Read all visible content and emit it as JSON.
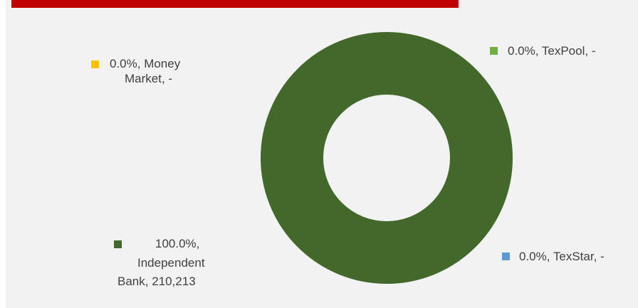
{
  "chart_data": {
    "type": "pie",
    "donut": true,
    "title": "",
    "slices": [
      {
        "label": "Money Market",
        "percent": "0.0%",
        "value": "-",
        "raw": 0,
        "color": "#ffc000"
      },
      {
        "label": "TexPool",
        "percent": "0.0%",
        "value": "-",
        "raw": 0,
        "color": "#70ad47"
      },
      {
        "label": "TexStar",
        "percent": "0.0%",
        "value": "-",
        "raw": 0,
        "color": "#5b9bd5"
      },
      {
        "label": "Independent Bank",
        "percent": "100.0%",
        "value": "210,213",
        "raw": 210213,
        "color": "#43682b"
      }
    ],
    "data_labels": {
      "money_market": {
        "line1": "0.0%, Money",
        "line2": "Market,  -"
      },
      "texpool": {
        "line1": "0.0%, TexPool,  -"
      },
      "texstar": {
        "line1": "0.0%, TexStar,  -"
      },
      "independent_bank": {
        "line1": "100.0%,",
        "line2": "Independent",
        "line3": "Bank,  210,213"
      }
    },
    "header_color": "#c00000"
  }
}
